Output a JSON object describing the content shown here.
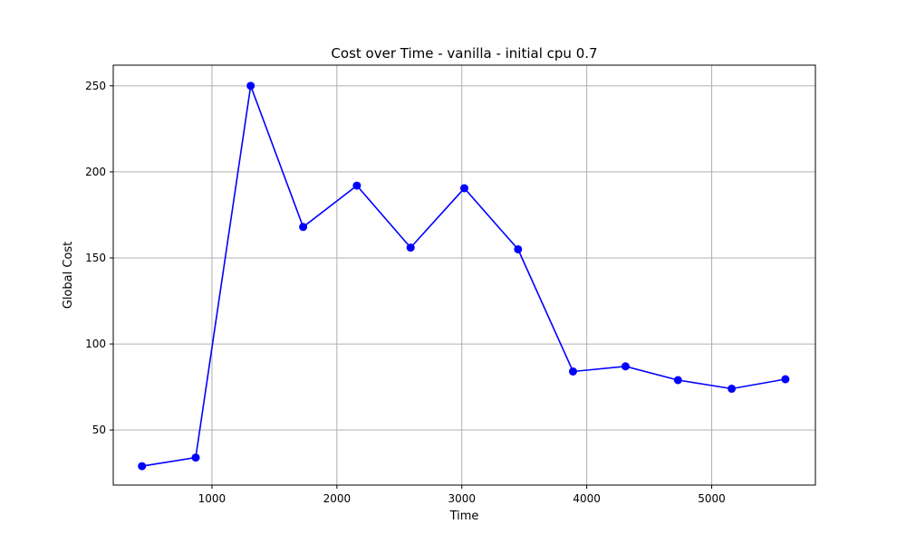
{
  "chart_data": {
    "type": "line",
    "title": "Cost over Time - vanilla - initial cpu 0.7",
    "xlabel": "Time",
    "ylabel": "Global Cost",
    "xlim": [
      210,
      5830
    ],
    "ylim": [
      18,
      262
    ],
    "xticks": [
      1000,
      2000,
      3000,
      4000,
      5000
    ],
    "yticks": [
      50,
      100,
      150,
      200,
      250
    ],
    "grid": true,
    "series": [
      {
        "color": "#0000ff",
        "marker": "circle",
        "x": [
          440,
          870,
          1310,
          1730,
          2160,
          2590,
          3020,
          3450,
          3890,
          4310,
          4730,
          5160,
          5590
        ],
        "y": [
          29,
          34,
          250,
          168,
          192,
          156,
          190.5,
          155,
          84,
          87,
          79,
          74,
          79.5
        ]
      }
    ]
  }
}
